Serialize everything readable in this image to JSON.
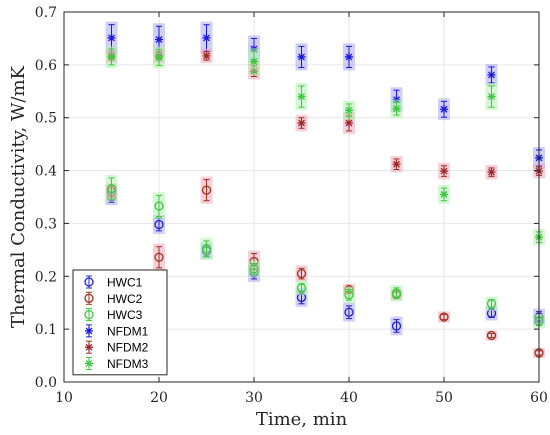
{
  "chart_data": {
    "type": "scatter",
    "title": "",
    "xlabel": "Time, min",
    "ylabel": "Thermal Conductivity, W/mK",
    "xlim": [
      10,
      60
    ],
    "ylim": [
      0,
      0.7
    ],
    "x_ticks": [
      "10",
      "20",
      "30",
      "40",
      "50",
      "60"
    ],
    "y_ticks": [
      "0.0",
      "0.1",
      "0.2",
      "0.3",
      "0.4",
      "0.5",
      "0.6",
      "0.7"
    ],
    "grid": true,
    "legend_position": "bottom-left",
    "series": [
      {
        "name": "HWC1",
        "marker": "circle",
        "color": "#2020c8",
        "highlight": "#a8a8f0",
        "points": [
          {
            "x": 15,
            "y": 0.35,
            "err": 0.01
          },
          {
            "x": 20,
            "y": 0.298,
            "err": 0.012
          },
          {
            "x": 25,
            "y": 0.248,
            "err": 0.01
          },
          {
            "x": 30,
            "y": 0.207,
            "err": 0.012
          },
          {
            "x": 35,
            "y": 0.16,
            "err": 0.012
          },
          {
            "x": 40,
            "y": 0.132,
            "err": 0.012
          },
          {
            "x": 45,
            "y": 0.106,
            "err": 0.012
          },
          {
            "x": 55,
            "y": 0.13,
            "err": 0.008
          },
          {
            "x": 60,
            "y": 0.123,
            "err": 0.01
          }
        ]
      },
      {
        "name": "HWC2",
        "marker": "circle",
        "color": "#a0301c",
        "highlight": "#f0a8b8",
        "points": [
          {
            "x": 15,
            "y": 0.36,
            "err": 0.01
          },
          {
            "x": 20,
            "y": 0.236,
            "err": 0.02
          },
          {
            "x": 25,
            "y": 0.363,
            "err": 0.02
          },
          {
            "x": 30,
            "y": 0.228,
            "err": 0.015
          },
          {
            "x": 35,
            "y": 0.205,
            "err": 0.01
          },
          {
            "x": 40,
            "y": 0.175,
            "err": 0.005
          },
          {
            "x": 45,
            "y": 0.165,
            "err": 0.005
          },
          {
            "x": 50,
            "y": 0.123,
            "err": 0.005
          },
          {
            "x": 55,
            "y": 0.088,
            "err": 0.004
          },
          {
            "x": 60,
            "y": 0.055,
            "err": 0.004
          }
        ]
      },
      {
        "name": "HWC3",
        "marker": "circle",
        "color": "#3ec83e",
        "highlight": "#b0f0b0",
        "points": [
          {
            "x": 15,
            "y": 0.366,
            "err": 0.02
          },
          {
            "x": 20,
            "y": 0.333,
            "err": 0.02
          },
          {
            "x": 25,
            "y": 0.252,
            "err": 0.015
          },
          {
            "x": 30,
            "y": 0.214,
            "err": 0.01
          },
          {
            "x": 35,
            "y": 0.178,
            "err": 0.008
          },
          {
            "x": 40,
            "y": 0.165,
            "err": 0.01
          },
          {
            "x": 45,
            "y": 0.168,
            "err": 0.01
          },
          {
            "x": 55,
            "y": 0.148,
            "err": 0.008
          },
          {
            "x": 60,
            "y": 0.115,
            "err": 0.008
          }
        ]
      },
      {
        "name": "NFDM1",
        "marker": "star",
        "color": "#1818e0",
        "highlight": "#a8a8f0",
        "points": [
          {
            "x": 15,
            "y": 0.651,
            "err": 0.025
          },
          {
            "x": 20,
            "y": 0.648,
            "err": 0.025
          },
          {
            "x": 25,
            "y": 0.651,
            "err": 0.025
          },
          {
            "x": 30,
            "y": 0.63,
            "err": 0.02
          },
          {
            "x": 35,
            "y": 0.615,
            "err": 0.02
          },
          {
            "x": 40,
            "y": 0.615,
            "err": 0.02
          },
          {
            "x": 45,
            "y": 0.534,
            "err": 0.018
          },
          {
            "x": 50,
            "y": 0.516,
            "err": 0.015
          },
          {
            "x": 55,
            "y": 0.581,
            "err": 0.015
          },
          {
            "x": 60,
            "y": 0.424,
            "err": 0.015
          }
        ]
      },
      {
        "name": "NFDM2",
        "marker": "star",
        "color": "#a02828",
        "highlight": "#f0a8b8",
        "points": [
          {
            "x": 15,
            "y": 0.617,
            "err": 0.008
          },
          {
            "x": 20,
            "y": 0.617,
            "err": 0.008
          },
          {
            "x": 25,
            "y": 0.617,
            "err": 0.008
          },
          {
            "x": 30,
            "y": 0.588,
            "err": 0.01
          },
          {
            "x": 35,
            "y": 0.49,
            "err": 0.01
          },
          {
            "x": 40,
            "y": 0.49,
            "err": 0.015
          },
          {
            "x": 45,
            "y": 0.412,
            "err": 0.01
          },
          {
            "x": 50,
            "y": 0.399,
            "err": 0.01
          },
          {
            "x": 55,
            "y": 0.397,
            "err": 0.008
          },
          {
            "x": 60,
            "y": 0.399,
            "err": 0.008
          }
        ]
      },
      {
        "name": "NFDM3",
        "marker": "star",
        "color": "#3ec83e",
        "highlight": "#b0f0b0",
        "points": [
          {
            "x": 15,
            "y": 0.615,
            "err": 0.015
          },
          {
            "x": 20,
            "y": 0.614,
            "err": 0.015
          },
          {
            "x": 30,
            "y": 0.606,
            "err": 0.02
          },
          {
            "x": 35,
            "y": 0.54,
            "err": 0.02
          },
          {
            "x": 40,
            "y": 0.514,
            "err": 0.012
          },
          {
            "x": 45,
            "y": 0.517,
            "err": 0.012
          },
          {
            "x": 50,
            "y": 0.355,
            "err": 0.012
          },
          {
            "x": 55,
            "y": 0.54,
            "err": 0.02
          },
          {
            "x": 60,
            "y": 0.274,
            "err": 0.01
          }
        ]
      }
    ]
  }
}
